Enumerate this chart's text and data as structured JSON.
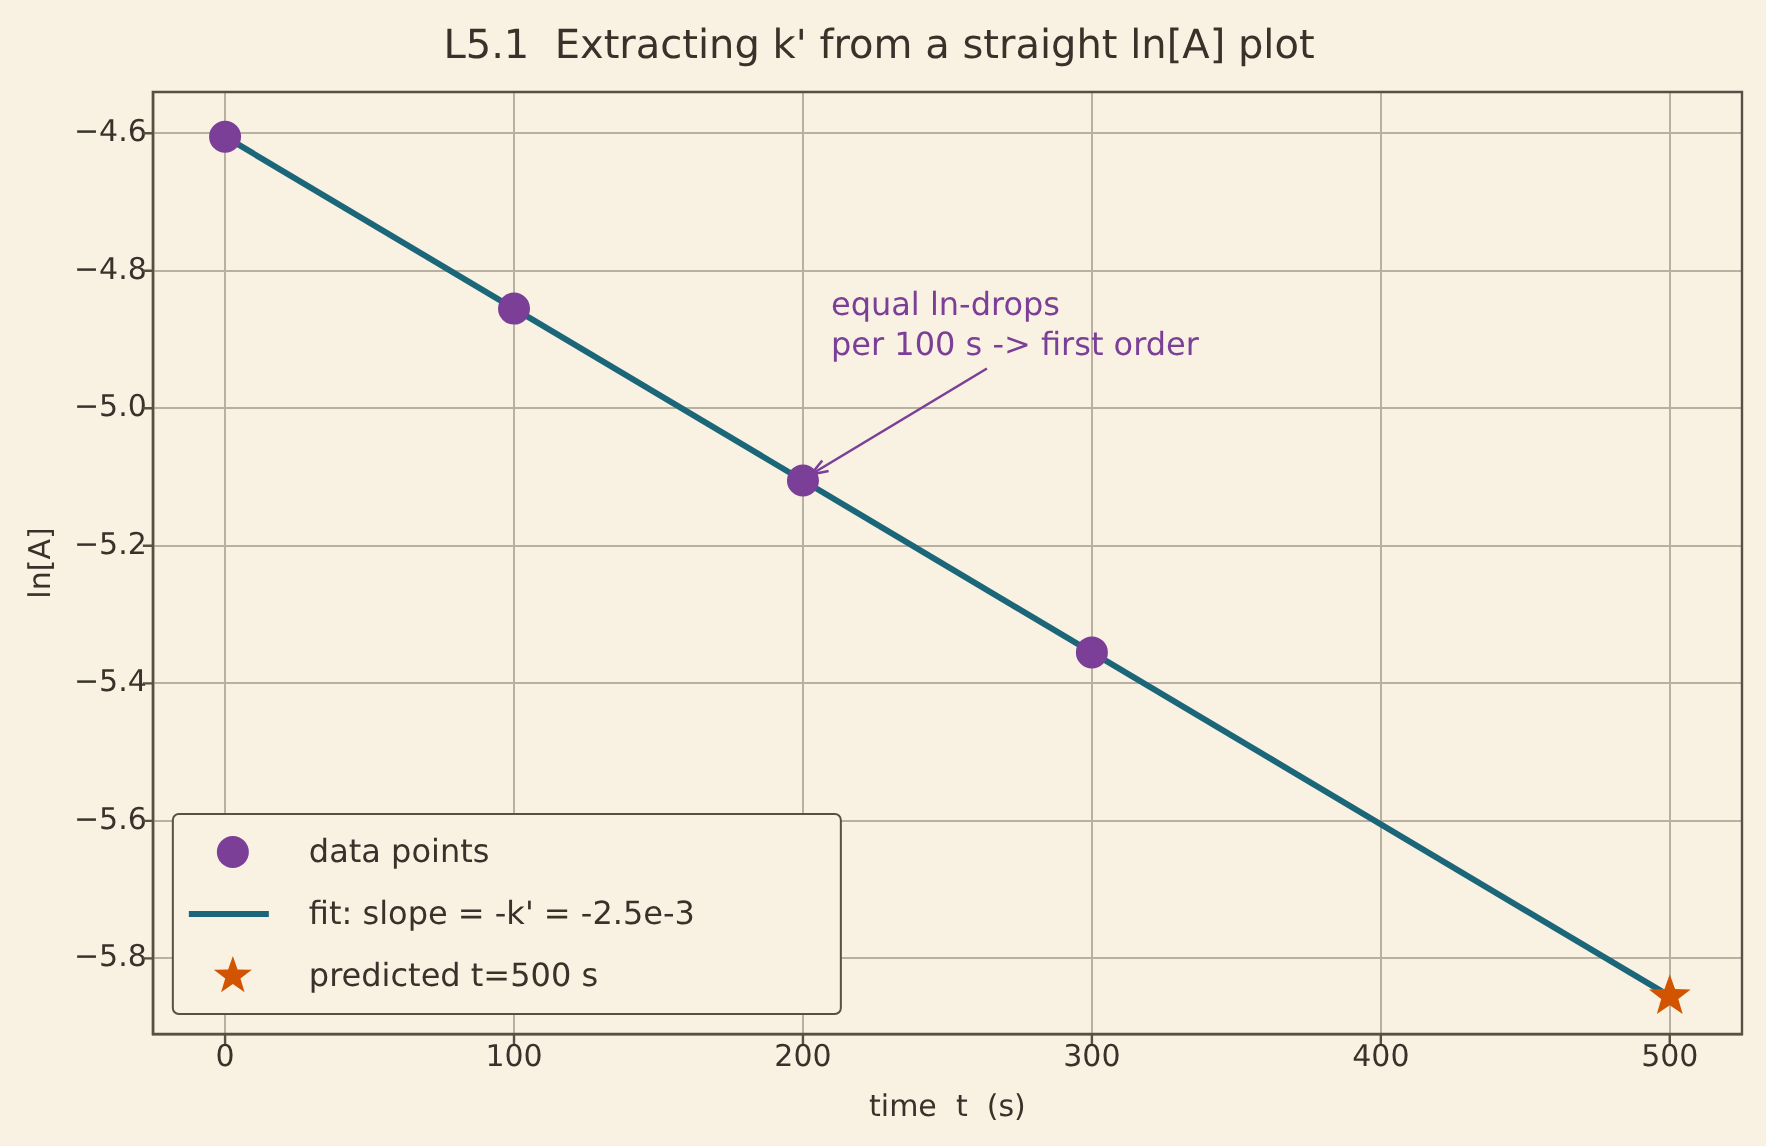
{
  "chart_data": {
    "type": "scatter",
    "title": "L5.1  Extracting k' from a straight ln[A] plot",
    "xlabel": "time  t  (s)",
    "ylabel": "ln[A]",
    "series": [
      {
        "name": "data points",
        "type": "scatter",
        "color": "#7b3f98",
        "marker": "circle",
        "x": [
          0,
          100,
          200,
          300
        ],
        "values": [
          -4.605,
          -4.855,
          -5.105,
          -5.355
        ]
      },
      {
        "name": "fit: slope = -k' = -2.5e-3",
        "type": "line",
        "color": "#1b6678",
        "line_style": "solid",
        "x": [
          0,
          500
        ],
        "values": [
          -4.605,
          -5.855
        ]
      },
      {
        "name": "predicted t=500 s",
        "type": "scatter",
        "color": "#d35400",
        "marker": "star",
        "x": [
          500
        ],
        "values": [
          -5.855
        ]
      }
    ],
    "annotations": [
      {
        "text": "equal ln-drops\nper 100 s -> first order",
        "x": 200,
        "y": -5.105
      }
    ],
    "xlim": [
      -25,
      525
    ],
    "xticks": [
      0,
      100,
      200,
      300,
      400,
      500
    ],
    "ylim": [
      -5.91,
      -4.54
    ],
    "yticks": [
      {
        "value": -4.6,
        "label": "−4.6"
      },
      {
        "value": -4.8,
        "label": "−4.8"
      },
      {
        "value": -5.0,
        "label": "−5.0"
      },
      {
        "value": -5.2,
        "label": "−5.2"
      },
      {
        "value": -5.4,
        "label": "−5.4"
      },
      {
        "value": -5.6,
        "label": "−5.6"
      },
      {
        "value": -5.8,
        "label": "−5.8"
      }
    ],
    "grid": true,
    "legend": "bottom left"
  }
}
